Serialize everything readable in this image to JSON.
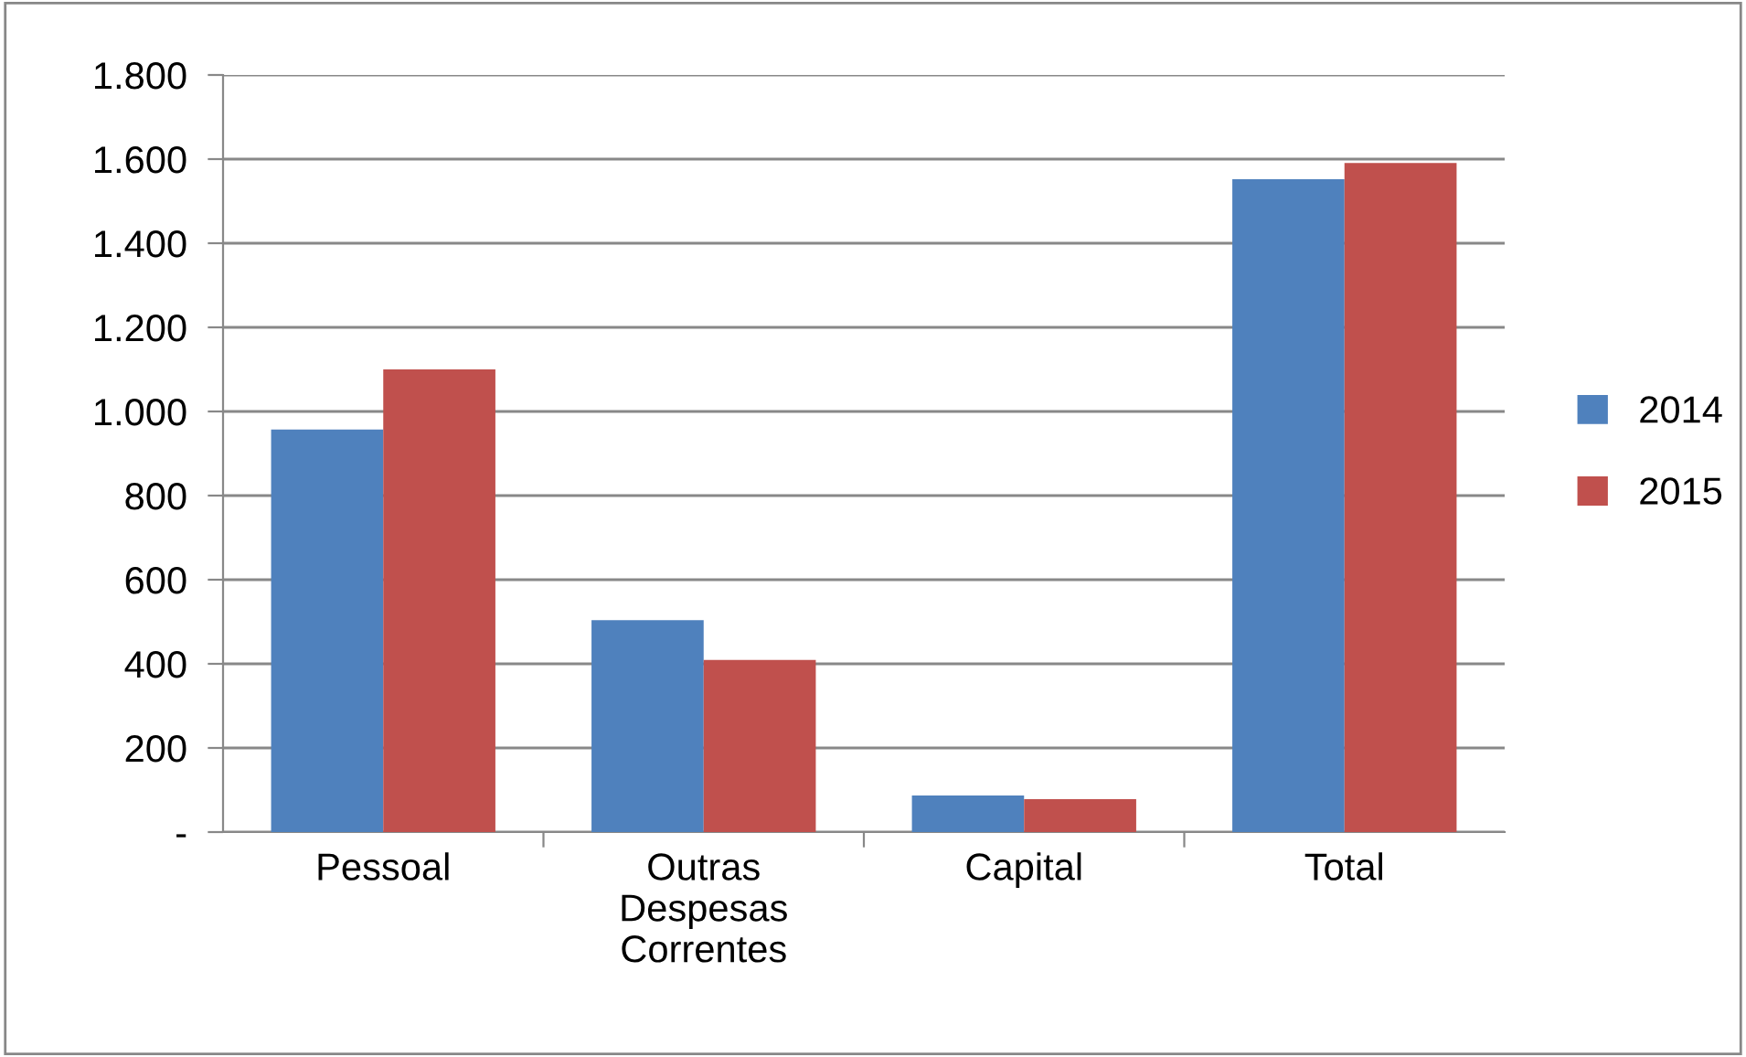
{
  "chart_data": {
    "type": "bar",
    "categories": [
      "Pessoal",
      "Outras\nDespesas\nCorrentes",
      "Capital",
      "Total"
    ],
    "series": [
      {
        "name": "2014",
        "color": "#4f81bd",
        "values": [
          957,
          504,
          87,
          1552
        ]
      },
      {
        "name": "2015",
        "color": "#c0504d",
        "values": [
          1100,
          409,
          78,
          1591
        ]
      }
    ],
    "ylim": [
      0,
      1800
    ],
    "yticks": [
      {
        "value": 0,
        "label": "-"
      },
      {
        "value": 200,
        "label": "200"
      },
      {
        "value": 400,
        "label": "400"
      },
      {
        "value": 600,
        "label": "600"
      },
      {
        "value": 800,
        "label": "800"
      },
      {
        "value": 1000,
        "label": "1.000"
      },
      {
        "value": 1200,
        "label": "1.200"
      },
      {
        "value": 1400,
        "label": "1.400"
      },
      {
        "value": 1600,
        "label": "1.600"
      },
      {
        "value": 1800,
        "label": "1.800"
      }
    ],
    "grid": "y",
    "legend": "right"
  }
}
